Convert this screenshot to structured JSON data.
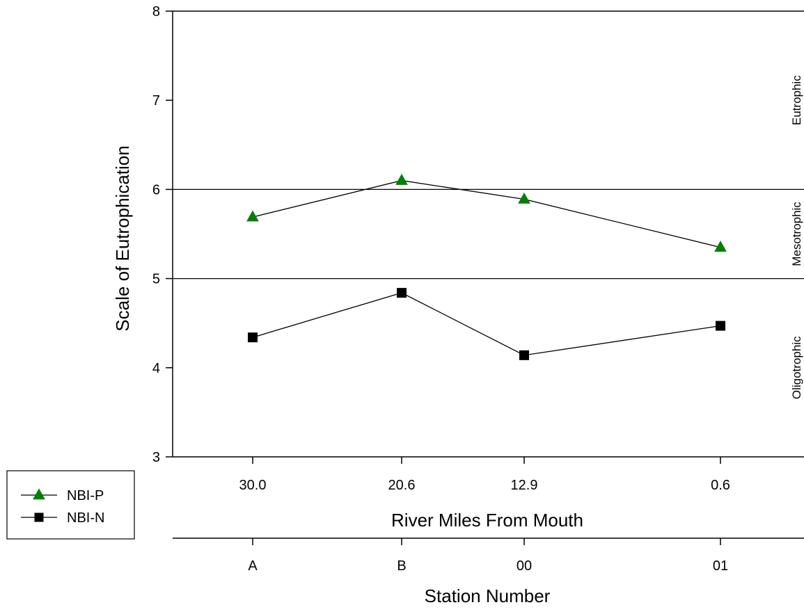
{
  "chart_data": {
    "type": "line",
    "title": "",
    "ylabel": "Scale of Eutrophication",
    "ylim": [
      3,
      8
    ],
    "yticks": [
      3,
      4,
      5,
      6,
      7,
      8
    ],
    "x_primary": {
      "label": "River Miles From Mouth",
      "ticks": [
        "30.0",
        "20.6",
        "12.9",
        "0.6"
      ],
      "values": [
        30.0,
        20.6,
        12.9,
        0.6
      ]
    },
    "x_secondary": {
      "label": "Station Number",
      "ticks": [
        "A",
        "B",
        "00",
        "01"
      ]
    },
    "thresholds": [
      5,
      6
    ],
    "zones": [
      {
        "label": "Eutrophic",
        "range": [
          6,
          8
        ]
      },
      {
        "label": "Mesotrophic",
        "range": [
          5,
          6
        ]
      },
      {
        "label": "Oligotrophic",
        "range": [
          3,
          5
        ]
      }
    ],
    "series": [
      {
        "name": "NBI-P",
        "marker": "triangle",
        "color": "#008000",
        "values": [
          5.69,
          6.1,
          5.89,
          5.35
        ]
      },
      {
        "name": "NBI-N",
        "marker": "square",
        "color": "#000000",
        "values": [
          4.34,
          4.84,
          4.14,
          4.47
        ]
      }
    ],
    "legend": {
      "position": "bottom-left"
    },
    "grid": false
  }
}
